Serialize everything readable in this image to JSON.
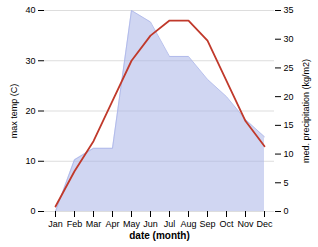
{
  "chart_data": {
    "type": "line",
    "xlabel": "date (month)",
    "ylabel": "max temp (C)",
    "y2label": "med. precipitation (kg/m2)",
    "categories": [
      "Jan",
      "Feb",
      "Mar",
      "Apr",
      "May",
      "Jun",
      "Jul",
      "Aug",
      "Sep",
      "Oct",
      "Nov",
      "Dec"
    ],
    "series": [
      {
        "type": "line",
        "color": "#c0392b",
        "values": [
          1,
          8,
          14,
          22,
          30,
          35,
          38,
          38,
          34,
          26,
          18,
          13
        ]
      },
      {
        "type": "area",
        "axis": "y2",
        "color": "#aab4e8",
        "values": [
          0,
          9,
          11,
          11,
          35,
          33,
          27,
          27,
          23,
          20,
          16,
          13
        ]
      }
    ],
    "ylim": [
      0,
      40
    ],
    "yticks": [
      0,
      10,
      20,
      30,
      40
    ],
    "y2lim": [
      0,
      35
    ],
    "y2ticks": [
      0,
      5,
      10,
      15,
      20,
      25,
      30,
      35
    ],
    "grid": true
  }
}
